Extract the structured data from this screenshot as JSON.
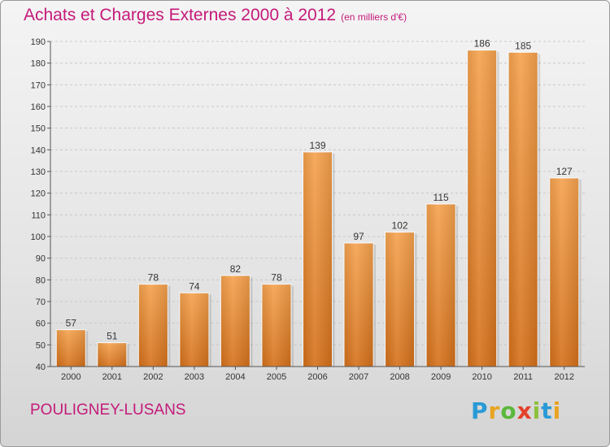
{
  "header": {
    "title": "Achats et Charges Externes 2000 à 2012",
    "subtitle": "(en milliers d'€)"
  },
  "footer": {
    "place": "POULIGNEY-LUSANS",
    "logo": "Proxiti"
  },
  "colors": {
    "accent": "#c41a7a",
    "bar_top": "#f5a24e",
    "bar_bottom": "#d4701a"
  },
  "chart_data": {
    "type": "bar",
    "categories": [
      "2000",
      "2001",
      "2002",
      "2003",
      "2004",
      "2005",
      "2006",
      "2007",
      "2008",
      "2009",
      "2010",
      "2011",
      "2012"
    ],
    "values": [
      57,
      51,
      78,
      74,
      82,
      78,
      139,
      97,
      102,
      115,
      186,
      185,
      127
    ],
    "title": "Achats et Charges Externes 2000 à 2012",
    "subtitle": "(en milliers d'€)",
    "xlabel": "",
    "ylabel": "",
    "ylim": [
      40,
      190
    ],
    "yticks": [
      40,
      50,
      60,
      70,
      80,
      90,
      100,
      110,
      120,
      130,
      140,
      150,
      160,
      170,
      180,
      190
    ],
    "grid": true,
    "legend": "none"
  }
}
